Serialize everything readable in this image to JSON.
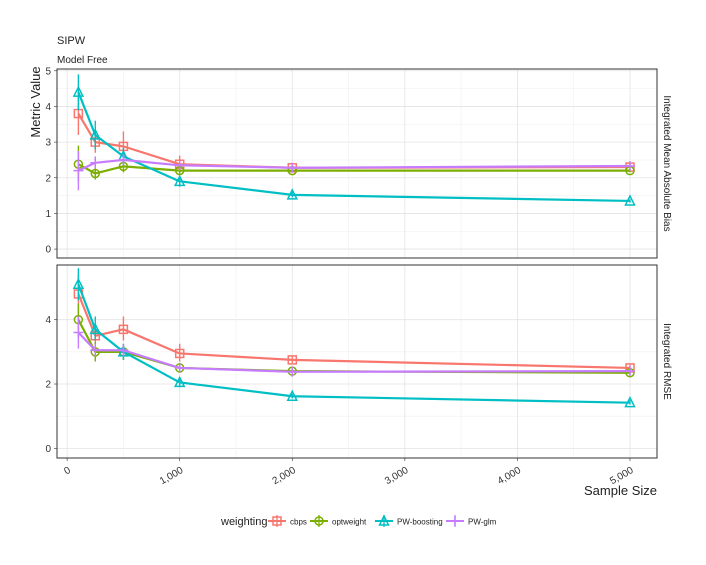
{
  "chart_data": {
    "type": "line",
    "title": "SIPW",
    "subtitle": "Model Free",
    "ylabel": "Metric Value",
    "xlabel": "Sample Size",
    "x": [
      100,
      250,
      500,
      1000,
      2000,
      5000
    ],
    "x_ticks": [
      0,
      1000,
      2000,
      3000,
      4000,
      5000
    ],
    "x_tick_labels": [
      "0",
      "1,000",
      "2,000",
      "3,000",
      "4,000",
      "5,000"
    ],
    "xlim": [
      -90,
      5240
    ],
    "legend": {
      "title": "weighting",
      "position": "bottom"
    },
    "grid": true,
    "series_styles": [
      {
        "name": "cbps",
        "color": "#F8766D",
        "shape": "square"
      },
      {
        "name": "optweight",
        "color": "#7CAE00",
        "shape": "circle"
      },
      {
        "name": "PW-boosting",
        "color": "#00BFC4",
        "shape": "triangle"
      },
      {
        "name": "PW-glm",
        "color": "#C77CFF",
        "shape": "cross"
      }
    ],
    "panels": [
      {
        "strip_label": "Integrated Mean Absolute Bias",
        "ylim": [
          -0.25,
          5.05
        ],
        "y_ticks": [
          0,
          1,
          2,
          3,
          4,
          5
        ],
        "y_tick_labels": [
          "0",
          "1",
          "2",
          "3",
          "4",
          "5"
        ],
        "series": [
          {
            "name": "cbps",
            "values": [
              3.8,
              3.0,
              2.88,
              2.38,
              2.28,
              2.3
            ],
            "err_low": [
              3.2,
              2.7,
              2.5,
              2.25,
              2.22,
              2.27
            ],
            "err_high": [
              4.4,
              3.3,
              3.3,
              2.62,
              2.38,
              2.4
            ]
          },
          {
            "name": "optweight",
            "values": [
              2.38,
              2.12,
              2.32,
              2.2,
              2.2,
              2.2
            ],
            "err_low": [
              1.9,
              1.95,
              2.15,
              2.1,
              2.15,
              2.15
            ],
            "err_high": [
              2.9,
              2.3,
              2.5,
              2.3,
              2.25,
              2.25
            ]
          },
          {
            "name": "PW-boosting",
            "values": [
              4.4,
              3.2,
              2.6,
              1.9,
              1.52,
              1.35
            ],
            "err_low": [
              3.9,
              2.8,
              2.35,
              1.75,
              1.45,
              1.3
            ],
            "err_high": [
              4.9,
              3.6,
              2.85,
              2.05,
              1.6,
              1.4
            ]
          },
          {
            "name": "PW-glm",
            "values": [
              2.2,
              2.42,
              2.5,
              2.35,
              2.28,
              2.33
            ],
            "err_low": [
              1.65,
              2.25,
              2.35,
              2.25,
              2.23,
              2.3
            ],
            "err_high": [
              2.75,
              2.6,
              2.65,
              2.45,
              2.33,
              2.38
            ]
          }
        ]
      },
      {
        "strip_label": "Integrated RMSE",
        "ylim": [
          -0.3,
          5.7
        ],
        "y_ticks": [
          0,
          2,
          4
        ],
        "y_tick_labels": [
          "0",
          "2",
          "4"
        ],
        "series": [
          {
            "name": "cbps",
            "values": [
              4.8,
              3.5,
              3.7,
              2.95,
              2.75,
              2.5
            ],
            "err_low": [
              4.2,
              3.2,
              3.35,
              2.7,
              2.65,
              2.42
            ],
            "err_high": [
              5.4,
              3.8,
              4.1,
              3.25,
              2.88,
              2.6
            ]
          },
          {
            "name": "optweight",
            "values": [
              4.0,
              3.0,
              3.0,
              2.5,
              2.4,
              2.35
            ],
            "err_low": [
              3.45,
              2.7,
              2.75,
              2.4,
              2.33,
              2.3
            ],
            "err_high": [
              4.5,
              3.3,
              3.25,
              2.62,
              2.47,
              2.42
            ]
          },
          {
            "name": "PW-boosting",
            "values": [
              5.1,
              3.7,
              3.0,
              2.05,
              1.62,
              1.42
            ],
            "err_low": [
              4.6,
              3.35,
              2.75,
              1.9,
              1.55,
              1.36
            ],
            "err_high": [
              5.6,
              4.1,
              3.25,
              2.2,
              1.7,
              1.5
            ]
          },
          {
            "name": "PW-glm",
            "values": [
              3.6,
              3.05,
              3.05,
              2.5,
              2.38,
              2.4
            ],
            "err_low": [
              3.1,
              2.85,
              2.85,
              2.4,
              2.33,
              2.35
            ],
            "err_high": [
              4.1,
              3.25,
              3.25,
              2.6,
              2.45,
              2.46
            ]
          }
        ]
      }
    ]
  }
}
